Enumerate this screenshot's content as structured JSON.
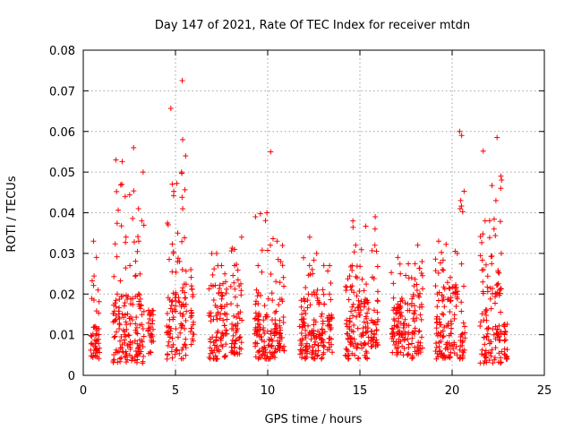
{
  "chart_data": {
    "type": "scatter",
    "title": "Day 147 of 2021, Rate Of TEC Index for receiver mtdn",
    "xlabel": "GPS time / hours",
    "ylabel": "ROTI / TECUs",
    "xlim": [
      0,
      25
    ],
    "ylim": [
      0,
      0.08
    ],
    "x_ticks": [
      0,
      5,
      10,
      15,
      20,
      25
    ],
    "x_tick_labels": [
      "0",
      "5",
      "10",
      "15",
      "20",
      "25"
    ],
    "y_ticks": [
      0,
      0.01,
      0.02,
      0.03,
      0.04,
      0.05,
      0.06,
      0.07,
      0.08
    ],
    "y_tick_labels": [
      "0",
      "0.01",
      "0.02",
      "0.03",
      "0.04",
      "0.05",
      "0.06",
      "0.07",
      "0.08"
    ],
    "grid": true,
    "marker": "+",
    "marker_color": "#ff0000",
    "series": [
      {
        "name": "mtdn",
        "clusters": [
          {
            "x": [
              0.4,
              0.9
            ],
            "base": [
              0.004,
              0.013
            ],
            "spikes": [
              0.021,
              0.029,
              0.033
            ]
          },
          {
            "x": [
              1.6,
              3.3
            ],
            "base": [
              0.003,
              0.02
            ],
            "spikes": [
              0.027,
              0.033,
              0.038,
              0.041,
              0.044,
              0.047,
              0.05,
              0.053,
              0.056
            ]
          },
          {
            "x": [
              3.5,
              3.8
            ],
            "base": [
              0.005,
              0.017
            ],
            "spikes": [
              0.015
            ]
          },
          {
            "x": [
              4.5,
              5.6
            ],
            "base": [
              0.004,
              0.02
            ],
            "spikes": [
              0.026,
              0.03,
              0.035,
              0.041,
              0.05,
              0.054,
              0.058,
              0.0725
            ]
          },
          {
            "x": [
              5.8,
              6.0
            ],
            "base": [
              0.007,
              0.016
            ],
            "spikes": [
              0.022,
              0.026
            ]
          },
          {
            "x": [
              6.8,
              7.8
            ],
            "base": [
              0.004,
              0.018
            ],
            "spikes": [
              0.023,
              0.027,
              0.03
            ]
          },
          {
            "x": [
              8.0,
              8.6
            ],
            "base": [
              0.005,
              0.018
            ],
            "spikes": [
              0.022,
              0.027,
              0.031,
              0.034
            ]
          },
          {
            "x": [
              9.3,
              10.5
            ],
            "base": [
              0.004,
              0.016
            ],
            "spikes": [
              0.021,
              0.027,
              0.032,
              0.039,
              0.04,
              0.055
            ]
          },
          {
            "x": [
              10.5,
              10.9
            ],
            "base": [
              0.006,
              0.014
            ],
            "spikes": [
              0.028,
              0.033
            ]
          },
          {
            "x": [
              11.7,
              13.1
            ],
            "base": [
              0.004,
              0.016
            ],
            "spikes": [
              0.02,
              0.025,
              0.03,
              0.034
            ]
          },
          {
            "x": [
              13.2,
              13.5
            ],
            "base": [
              0.005,
              0.015
            ],
            "spikes": [
              0.02,
              0.027
            ]
          },
          {
            "x": [
              14.2,
              15.5
            ],
            "base": [
              0.004,
              0.018
            ],
            "spikes": [
              0.022,
              0.027,
              0.032,
              0.038
            ]
          },
          {
            "x": [
              15.6,
              16.0
            ],
            "base": [
              0.007,
              0.014
            ],
            "spikes": [
              0.032,
              0.036,
              0.039
            ]
          },
          {
            "x": [
              16.7,
              17.7
            ],
            "base": [
              0.005,
              0.016
            ],
            "spikes": [
              0.019,
              0.025,
              0.029
            ]
          },
          {
            "x": [
              17.8,
              18.4
            ],
            "base": [
              0.004,
              0.02
            ],
            "spikes": [
              0.024,
              0.028,
              0.032
            ]
          },
          {
            "x": [
              19.1,
              20.3
            ],
            "base": [
              0.004,
              0.02
            ],
            "spikes": [
              0.022,
              0.026,
              0.03,
              0.033
            ]
          },
          {
            "x": [
              20.4,
              20.7
            ],
            "base": [
              0.004,
              0.013
            ],
            "spikes": [
              0.041,
              0.043,
              0.059,
              0.06
            ]
          },
          {
            "x": [
              21.5,
              22.7
            ],
            "base": [
              0.003,
              0.022
            ],
            "spikes": [
              0.026,
              0.03,
              0.036,
              0.038,
              0.043,
              0.046,
              0.049,
              0.0585
            ]
          },
          {
            "x": [
              22.8,
              23.0
            ],
            "base": [
              0.004,
              0.013
            ],
            "spikes": [
              0.012
            ]
          }
        ]
      }
    ]
  }
}
